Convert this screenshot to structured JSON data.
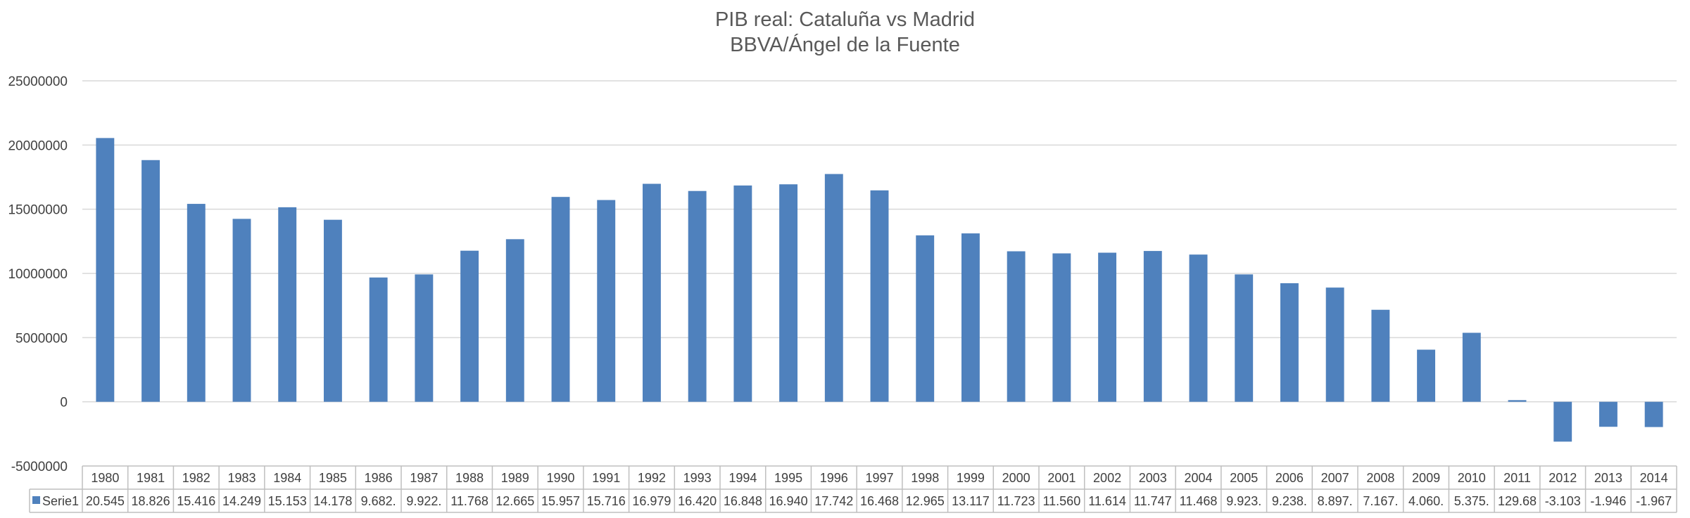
{
  "chart_data": {
    "type": "bar",
    "title": "PIB real: Cataluña vs Madrid",
    "subtitle": "BBVA/Ángel de la Fuente",
    "xlabel": "",
    "ylabel": "",
    "ylim": [
      -5000000,
      25000000
    ],
    "yticks": [
      25000000,
      20000000,
      15000000,
      10000000,
      5000000,
      0,
      -5000000
    ],
    "ytick_labels": [
      "25000000",
      "20000000",
      "15000000",
      "10000000",
      "5000000",
      "0",
      "-5000000"
    ],
    "grid": true,
    "legend": "data table",
    "colors": {
      "bar": "#4f81bd",
      "grid": "#d9d9d9",
      "table_border": "#bfbfbf"
    },
    "categories": [
      "1980",
      "1981",
      "1982",
      "1983",
      "1984",
      "1985",
      "1986",
      "1987",
      "1988",
      "1989",
      "1990",
      "1991",
      "1992",
      "1993",
      "1994",
      "1995",
      "1996",
      "1997",
      "1998",
      "1999",
      "2000",
      "2001",
      "2002",
      "2003",
      "2004",
      "2005",
      "2006",
      "2007",
      "2008",
      "2009",
      "2010",
      "2011",
      "2012",
      "2013",
      "2014"
    ],
    "series": [
      {
        "name": "Serie1",
        "values": [
          20545000,
          18826000,
          15416000,
          14249000,
          15153000,
          14178000,
          9682000,
          9922000,
          11768000,
          12665000,
          15957000,
          15716000,
          16979000,
          16420000,
          16848000,
          16940000,
          17742000,
          16468000,
          12965000,
          13117000,
          11723000,
          11560000,
          11614000,
          11747000,
          11468000,
          9923000,
          9238000,
          8897000,
          7167000,
          4060000,
          5375000,
          129680,
          -3103000,
          -1946000,
          -1967000
        ],
        "table_labels": [
          "20.545",
          "18.826",
          "15.416",
          "14.249",
          "15.153",
          "14.178",
          "9.682.",
          "9.922.",
          "11.768",
          "12.665",
          "15.957",
          "15.716",
          "16.979",
          "16.420",
          "16.848",
          "16.940",
          "17.742",
          "16.468",
          "12.965",
          "13.117",
          "11.723",
          "11.560",
          "11.614",
          "11.747",
          "11.468",
          "9.923.",
          "9.238.",
          "8.897.",
          "7.167.",
          "4.060.",
          "5.375.",
          "129.68",
          "-3.103",
          "-1.946",
          "-1.967"
        ]
      }
    ]
  }
}
